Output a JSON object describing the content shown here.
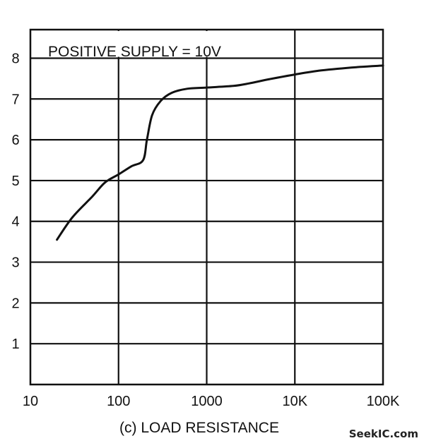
{
  "chart_data": {
    "type": "line",
    "title": "",
    "xlabel": "(c)  LOAD RESISTANCE",
    "ylabel": "",
    "x_scale": "log",
    "xlim": [
      10,
      100000
    ],
    "ylim": [
      0,
      8.7
    ],
    "grid": true,
    "x_ticks": [
      {
        "value": 10,
        "label": "10"
      },
      {
        "value": 100,
        "label": "100"
      },
      {
        "value": 1000,
        "label": "1000"
      },
      {
        "value": 10000,
        "label": "10K"
      },
      {
        "value": 100000,
        "label": "100K"
      }
    ],
    "y_ticks": [
      {
        "value": 1,
        "label": "1"
      },
      {
        "value": 2,
        "label": "2"
      },
      {
        "value": 3,
        "label": "3"
      },
      {
        "value": 4,
        "label": "4"
      },
      {
        "value": 5,
        "label": "5"
      },
      {
        "value": 6,
        "label": "6"
      },
      {
        "value": 7,
        "label": "7"
      },
      {
        "value": 8,
        "label": "8"
      }
    ],
    "annotation": "POSITIVE SUPPLY  =  10V",
    "series": [
      {
        "x": [
          20,
          30,
          50,
          70,
          100,
          140,
          190,
          210,
          240,
          300,
          400,
          600,
          1000,
          2000,
          3000,
          5000,
          10000,
          20000,
          50000,
          100000
        ],
        "y": [
          3.55,
          4.1,
          4.6,
          4.95,
          5.15,
          5.35,
          5.5,
          6.0,
          6.6,
          6.95,
          7.15,
          7.25,
          7.28,
          7.32,
          7.38,
          7.48,
          7.6,
          7.7,
          7.78,
          7.82
        ]
      }
    ]
  },
  "watermark": "SeekIC.com"
}
